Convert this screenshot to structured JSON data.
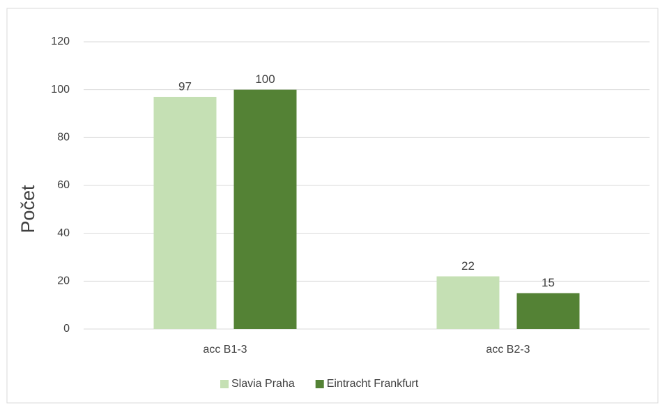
{
  "chart_data": {
    "type": "bar",
    "y_axis_label": "Počet",
    "categories": [
      "acc B1-3",
      "acc B2-3"
    ],
    "series": [
      {
        "name": "Slavia Praha",
        "color": "#c5e0b4",
        "values": [
          97,
          22
        ]
      },
      {
        "name": "Eintracht Frankfurt",
        "color": "#548235",
        "values": [
          100,
          15
        ]
      }
    ],
    "ylim": [
      0,
      120
    ],
    "yticks": [
      0,
      20,
      40,
      60,
      80,
      100,
      120
    ],
    "grid": true,
    "legend": "bottom"
  }
}
